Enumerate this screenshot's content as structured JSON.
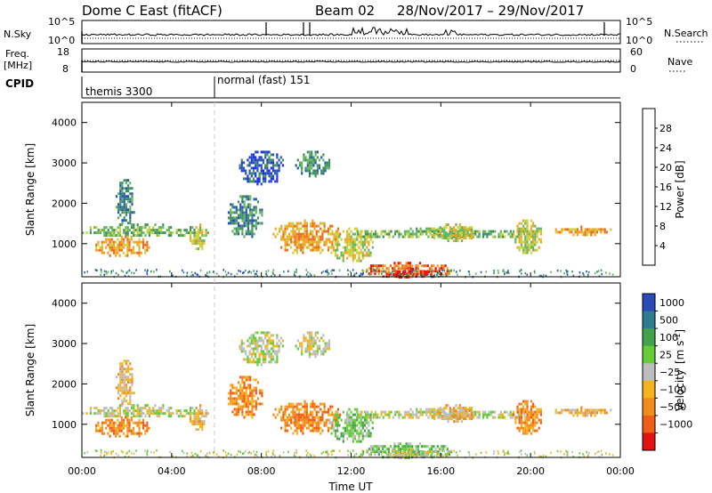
{
  "header": {
    "title": "Dome C East (fitACF)",
    "beam": "Beam 02",
    "date_range": "28/Nov/2017 – 29/Nov/2017"
  },
  "strips": {
    "nsky_label": "N.Sky",
    "nsky_ticks": [
      "10^5",
      "10^0"
    ],
    "nsearch_label": "N.Search",
    "nsearch_ticks": [
      "10^5",
      "10^0"
    ],
    "freq_label_1": "Freq.",
    "freq_label_2": "[MHz]",
    "freq_ticks": [
      "18",
      "8"
    ],
    "nave_label": "Nave",
    "nave_ticks": [
      "60",
      "0"
    ],
    "cpid_label": "CPID",
    "cpid_segments": [
      {
        "label": "themis 3300",
        "start_hour": 0
      },
      {
        "label": "normal (fast) 151",
        "start_hour": 6
      }
    ]
  },
  "axes": {
    "ylabel": "Slant Range [km]",
    "xlabel": "Time UT",
    "ylim": [
      180,
      4500
    ],
    "yticks": [
      1000,
      2000,
      3000,
      4000
    ],
    "xlim": [
      0,
      24
    ],
    "xticks": [
      "00:00",
      "04:00",
      "08:00",
      "12:00",
      "16:00",
      "20:00",
      "00:00"
    ],
    "xtick_hours": [
      0,
      4,
      8,
      12,
      16,
      20,
      24
    ]
  },
  "power_colorbar": {
    "label": "Power [dB]",
    "ticks": [
      "4",
      "8",
      "12",
      "16",
      "20",
      "24",
      "28"
    ],
    "colors": [
      "#1f2fe8",
      "#2a55b5",
      "#3e8f5f",
      "#64b560",
      "#c8d23a",
      "#f2a224",
      "#f06a1e",
      "#e21414"
    ]
  },
  "velocity_colorbar": {
    "label_main": "Velocity",
    "label_unit": "[m s",
    "label_sup": "-1",
    "label_end": "]",
    "ticks": [
      "1000",
      "500",
      "100",
      "25",
      "−25",
      "−100",
      "−500",
      "−1000"
    ],
    "colors": [
      "#2a4cb8",
      "#2f7c90",
      "#43a34c",
      "#66cc36",
      "#bdbdbd",
      "#f6b41c",
      "#f28a1c",
      "#ef5d18",
      "#e01212"
    ]
  },
  "chart_data": [
    {
      "type": "heatmap",
      "title": "",
      "xlabel": "",
      "ylabel": "Slant Range [km]",
      "variable": "Power [dB]",
      "xlim": [
        0,
        24
      ],
      "ylim": [
        180,
        4500
      ],
      "echo_regions": [
        {
          "t0": 0.0,
          "t1": 5.2,
          "r0": 1200,
          "r1": 1500,
          "level": 3
        },
        {
          "t0": 0.6,
          "t1": 3.0,
          "r0": 700,
          "r1": 1200,
          "level": 5
        },
        {
          "t0": 1.5,
          "t1": 2.3,
          "r0": 1500,
          "r1": 2600,
          "level": 2
        },
        {
          "t0": 4.8,
          "t1": 5.6,
          "r0": 900,
          "r1": 1500,
          "level": 4
        },
        {
          "t0": 6.5,
          "t1": 8.0,
          "r0": 1200,
          "r1": 2200,
          "level": 2
        },
        {
          "t0": 7.0,
          "t1": 9.0,
          "r0": 2500,
          "r1": 3300,
          "level": 1
        },
        {
          "t0": 8.5,
          "t1": 11.5,
          "r0": 800,
          "r1": 1600,
          "level": 5
        },
        {
          "t0": 9.5,
          "t1": 11.0,
          "r0": 2700,
          "r1": 3300,
          "level": 2
        },
        {
          "t0": 11.0,
          "t1": 13.0,
          "r0": 600,
          "r1": 1400,
          "level": 4
        },
        {
          "t0": 12.5,
          "t1": 16.5,
          "r0": 200,
          "r1": 550,
          "level": 6
        },
        {
          "t0": 13.5,
          "t1": 15.5,
          "r0": 200,
          "r1": 400,
          "level": 7
        },
        {
          "t0": 12.0,
          "t1": 20.0,
          "r0": 1150,
          "r1": 1400,
          "level": 3
        },
        {
          "t0": 15.5,
          "t1": 17.5,
          "r0": 1100,
          "r1": 1500,
          "level": 4
        },
        {
          "t0": 19.2,
          "t1": 20.5,
          "r0": 800,
          "r1": 1600,
          "level": 4
        },
        {
          "t0": 21.0,
          "t1": 23.7,
          "r0": 1250,
          "r1": 1450,
          "level": 5
        }
      ]
    },
    {
      "type": "heatmap",
      "title": "",
      "xlabel": "Time UT",
      "ylabel": "Slant Range [km]",
      "variable": "Velocity [m s-1]",
      "xlim": [
        0,
        24
      ],
      "ylim": [
        180,
        4500
      ],
      "echo_regions": [
        {
          "t0": 0.0,
          "t1": 5.2,
          "r0": 1200,
          "r1": 1500,
          "level": 4
        },
        {
          "t0": 0.6,
          "t1": 3.0,
          "r0": 700,
          "r1": 1200,
          "level": 6
        },
        {
          "t0": 1.5,
          "t1": 2.3,
          "r0": 1500,
          "r1": 2600,
          "level": 5
        },
        {
          "t0": 4.8,
          "t1": 5.6,
          "r0": 900,
          "r1": 1500,
          "level": 5
        },
        {
          "t0": 6.5,
          "t1": 8.0,
          "r0": 1200,
          "r1": 2200,
          "level": 6
        },
        {
          "t0": 7.0,
          "t1": 9.0,
          "r0": 2500,
          "r1": 3300,
          "level": 4
        },
        {
          "t0": 8.5,
          "t1": 11.5,
          "r0": 800,
          "r1": 1600,
          "level": 6
        },
        {
          "t0": 9.5,
          "t1": 11.0,
          "r0": 2700,
          "r1": 3300,
          "level": 4
        },
        {
          "t0": 11.0,
          "t1": 13.0,
          "r0": 600,
          "r1": 1400,
          "level": 3
        },
        {
          "t0": 12.5,
          "t1": 16.5,
          "r0": 200,
          "r1": 550,
          "level": 3
        },
        {
          "t0": 13.5,
          "t1": 15.5,
          "r0": 200,
          "r1": 400,
          "level": 4
        },
        {
          "t0": 12.0,
          "t1": 20.0,
          "r0": 1150,
          "r1": 1400,
          "level": 4
        },
        {
          "t0": 15.5,
          "t1": 17.5,
          "r0": 1100,
          "r1": 1500,
          "level": 5
        },
        {
          "t0": 19.2,
          "t1": 20.5,
          "r0": 800,
          "r1": 1600,
          "level": 6
        },
        {
          "t0": 21.0,
          "t1": 23.7,
          "r0": 1250,
          "r1": 1450,
          "level": 5
        }
      ]
    }
  ]
}
